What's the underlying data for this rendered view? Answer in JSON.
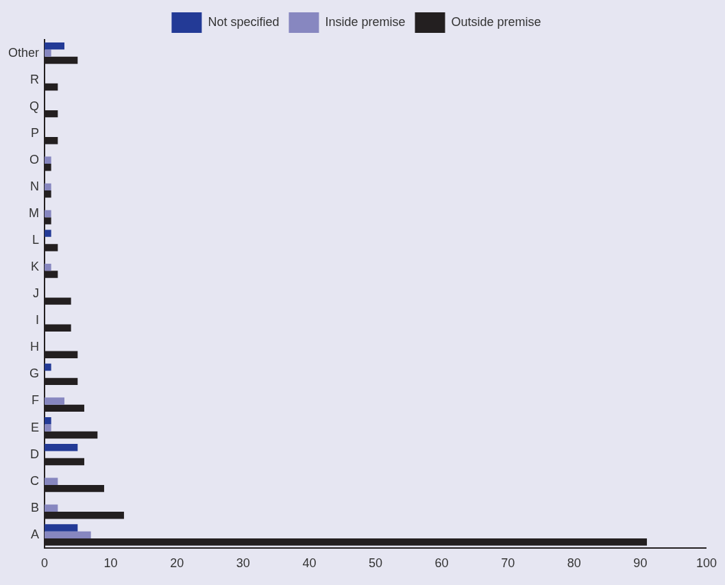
{
  "chart_data": {
    "type": "bar",
    "orientation": "horizontal",
    "categories": [
      "Other",
      "R",
      "Q",
      "P",
      "O",
      "N",
      "M",
      "L",
      "K",
      "J",
      "I",
      "H",
      "G",
      "F",
      "E",
      "D",
      "C",
      "B",
      "A"
    ],
    "series": [
      {
        "name": "Not specified",
        "color": "#233a96",
        "values": [
          3,
          0,
          0,
          0,
          0,
          0,
          0,
          1,
          0,
          0,
          0,
          0,
          1,
          0,
          1,
          5,
          0,
          0,
          5
        ]
      },
      {
        "name": "Inside premise",
        "color": "#8787c0",
        "values": [
          1,
          0,
          0,
          0,
          1,
          1,
          1,
          0,
          1,
          0,
          0,
          0,
          0,
          3,
          1,
          0,
          2,
          2,
          7
        ]
      },
      {
        "name": "Outside premise",
        "color": "#231f20",
        "values": [
          5,
          2,
          2,
          2,
          1,
          1,
          1,
          2,
          2,
          4,
          4,
          5,
          5,
          6,
          8,
          6,
          9,
          12,
          91
        ]
      }
    ],
    "xlim": [
      0,
      100
    ],
    "xticks": [
      0,
      10,
      20,
      30,
      40,
      50,
      60,
      70,
      80,
      90,
      100
    ],
    "grid": false,
    "legend": "top"
  }
}
